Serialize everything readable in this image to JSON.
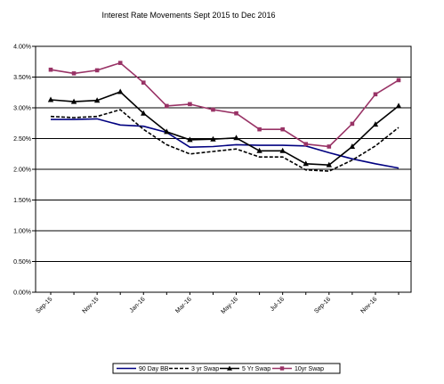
{
  "chart_data": {
    "type": "line",
    "title": "Interest Rate Movements Sept 2015 to Dec 2016",
    "xlabel": "",
    "ylabel": "",
    "ylim": [
      0,
      4
    ],
    "yticks": [
      "0.00%",
      "0.50%",
      "1.00%",
      "1.50%",
      "2.00%",
      "2.50%",
      "3.00%",
      "3.50%",
      "4.00%"
    ],
    "categories": [
      "Sep-15",
      "Oct-15",
      "Nov-15",
      "Dec-15",
      "Jan-16",
      "Feb-16",
      "Mar-16",
      "Apr-16",
      "May-16",
      "Jun-16",
      "Jul-16",
      "Aug-16",
      "Sep-16",
      "Oct-16",
      "Nov-16",
      "Dec-16"
    ],
    "xticks": [
      "Sep-15",
      "Nov-15",
      "Jan-16",
      "Mar-16",
      "May-16",
      "Jul-16",
      "Sep-16",
      "Nov-16"
    ],
    "grid": "horizontal",
    "legend": "bottom",
    "series": [
      {
        "name": "90 Day BB",
        "color": "#000080",
        "style": "solid",
        "marker": "none",
        "values": [
          2.81,
          2.81,
          2.82,
          2.72,
          2.7,
          2.6,
          2.36,
          2.37,
          2.4,
          2.39,
          2.39,
          2.38,
          2.27,
          2.17,
          2.09,
          2.02
        ]
      },
      {
        "name": "3 yr Swap",
        "color": "#000000",
        "style": "dashed",
        "marker": "none",
        "values": [
          2.86,
          2.84,
          2.86,
          2.97,
          2.65,
          2.4,
          2.25,
          2.29,
          2.33,
          2.2,
          2.2,
          1.99,
          1.97,
          2.15,
          2.38,
          2.68
        ]
      },
      {
        "name": "5 Yr Swap",
        "color": "#000000",
        "style": "solid",
        "marker": "triangle",
        "values": [
          3.13,
          3.1,
          3.12,
          3.26,
          2.91,
          2.61,
          2.48,
          2.49,
          2.51,
          2.3,
          2.3,
          2.09,
          2.07,
          2.37,
          2.73,
          3.03
        ]
      },
      {
        "name": "10yr Swap",
        "color": "#993366",
        "style": "solid",
        "marker": "square",
        "values": [
          3.62,
          3.56,
          3.61,
          3.73,
          3.41,
          3.03,
          3.06,
          2.97,
          2.91,
          2.65,
          2.65,
          2.41,
          2.37,
          2.74,
          3.22,
          3.45
        ]
      }
    ]
  }
}
